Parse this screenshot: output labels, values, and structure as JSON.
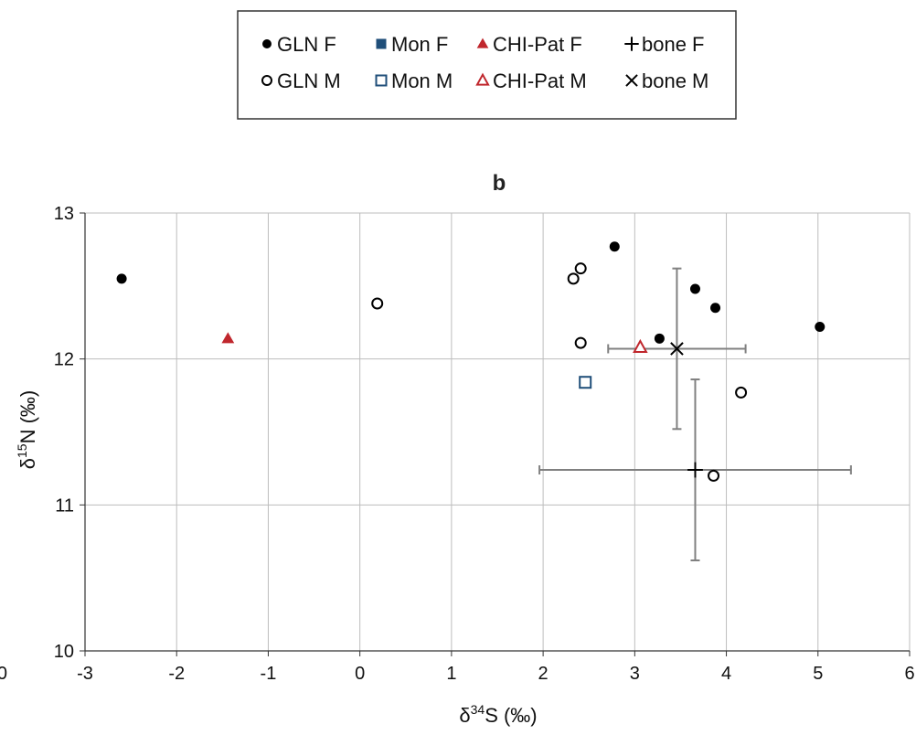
{
  "chart_data": {
    "type": "scatter",
    "panel_label": "b",
    "xlabel_prefix": "δ",
    "xlabel_sup": "34",
    "xlabel_suffix": "S (‰)",
    "ylabel_prefix": "δ",
    "ylabel_sup": "15",
    "ylabel_suffix": "N (‰)",
    "xlim": [
      -3,
      6
    ],
    "ylim": [
      10,
      13
    ],
    "x_ticks": [
      "-3",
      "-2",
      "-1",
      "0",
      "1",
      "2",
      "3",
      "4",
      "5",
      "6"
    ],
    "y_ticks": [
      "10",
      "11",
      "12",
      "13"
    ],
    "partial_left_tick": "0",
    "grid": true,
    "legend_position": "top",
    "series": [
      {
        "name": "GLN F",
        "marker": "filled-circle",
        "color": "#000000",
        "points": [
          [
            -2.6,
            12.55
          ],
          [
            2.78,
            12.77
          ],
          [
            3.66,
            12.48
          ],
          [
            3.88,
            12.35
          ],
          [
            3.27,
            12.14
          ],
          [
            5.02,
            12.22
          ]
        ]
      },
      {
        "name": "GLN M",
        "marker": "open-circle",
        "color": "#000000",
        "points": [
          [
            0.19,
            12.38
          ],
          [
            2.33,
            12.55
          ],
          [
            2.41,
            12.62
          ],
          [
            2.41,
            12.11
          ],
          [
            4.16,
            11.77
          ],
          [
            3.86,
            11.2
          ]
        ]
      },
      {
        "name": "Mon F",
        "marker": "filled-square",
        "color": "#1f4e79",
        "points": []
      },
      {
        "name": "Mon M",
        "marker": "open-square",
        "color": "#1f4e79",
        "points": [
          [
            2.46,
            11.84
          ]
        ]
      },
      {
        "name": "CHI-Pat F",
        "marker": "filled-triangle",
        "color": "#c0272d",
        "points": [
          [
            -1.44,
            12.14
          ]
        ]
      },
      {
        "name": "CHI-Pat M",
        "marker": "open-triangle",
        "color": "#c0272d",
        "points": [
          [
            3.06,
            12.08
          ]
        ]
      },
      {
        "name": "bone F",
        "marker": "plus",
        "color": "#000000",
        "points": [
          [
            3.66,
            11.24
          ]
        ],
        "error_x": [
          [
            1.96,
            5.36
          ]
        ],
        "error_y": [
          [
            10.62,
            11.86
          ]
        ]
      },
      {
        "name": "bone M",
        "marker": "cross",
        "color": "#000000",
        "points": [
          [
            3.46,
            12.07
          ]
        ],
        "error_x": [
          [
            2.71,
            4.21
          ]
        ],
        "error_y": [
          [
            11.52,
            12.62
          ]
        ]
      }
    ]
  }
}
